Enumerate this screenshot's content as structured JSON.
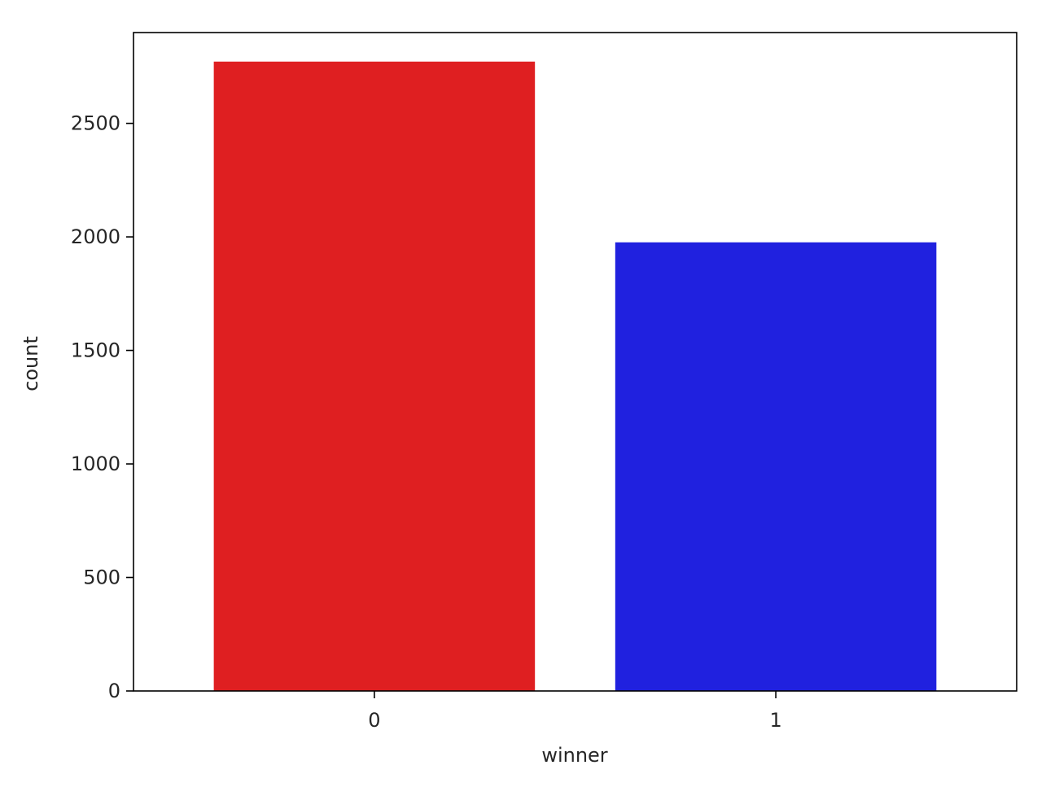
{
  "chart_data": {
    "type": "bar",
    "categories": [
      "0",
      "1"
    ],
    "values": [
      2772,
      1976
    ],
    "colors": [
      "#df1f21",
      "#2021df"
    ],
    "xlabel": "winner",
    "ylabel": "count",
    "ylim": [
      0,
      2900
    ],
    "yticks": [
      0,
      500,
      1000,
      1500,
      2000,
      2500
    ],
    "grid": false,
    "legend": "none"
  }
}
